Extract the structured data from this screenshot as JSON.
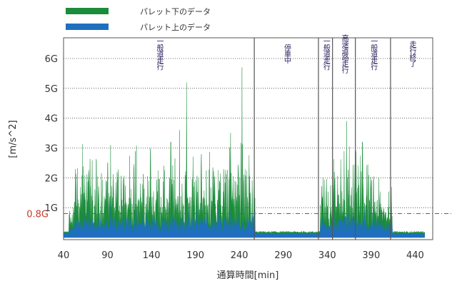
{
  "chart_data": {
    "type": "area",
    "xlabel": "通算時間[min]",
    "ylabel": "[m/s^2]",
    "xlim": [
      40,
      460
    ],
    "ylim": [
      0,
      6.5
    ],
    "x_ticks": [
      40,
      90,
      140,
      190,
      240,
      290,
      340,
      390,
      440
    ],
    "y_ticks": [
      {
        "value": 1,
        "label": "1G"
      },
      {
        "value": 2,
        "label": "2G"
      },
      {
        "value": 3,
        "label": "3G"
      },
      {
        "value": 4,
        "label": "4G"
      },
      {
        "value": 5,
        "label": "5G"
      },
      {
        "value": 6,
        "label": "6G"
      }
    ],
    "threshold": {
      "value": 0.8,
      "label": "0.8G",
      "color": "#c0392b"
    },
    "grid": "horizontal-dotted",
    "legend_position": "top-left",
    "series": [
      {
        "name": "パレット下のデータ",
        "color": "#1a8c3a"
      },
      {
        "name": "パレット上のデータ",
        "color": "#1f6fbf"
      }
    ],
    "phases": [
      {
        "label": "一般道走行",
        "start": 40,
        "end": 257
      },
      {
        "label": "停車中",
        "start": 257,
        "end": 330
      },
      {
        "label": "一般道走行",
        "start": 330,
        "end": 346
      },
      {
        "label": "高速道路走行",
        "start": 346,
        "end": 372
      },
      {
        "label": "一般道走行",
        "start": 372,
        "end": 412
      },
      {
        "label": "走行終了",
        "start": 412,
        "end": 460
      }
    ],
    "peaks_lower": [
      {
        "x": 162,
        "y": 3.2
      },
      {
        "x": 172,
        "y": 3.6
      },
      {
        "x": 180,
        "y": 5.2
      },
      {
        "x": 230,
        "y": 3.5
      },
      {
        "x": 243,
        "y": 5.7
      },
      {
        "x": 362,
        "y": 3.9
      },
      {
        "x": 380,
        "y": 3.2
      }
    ]
  }
}
